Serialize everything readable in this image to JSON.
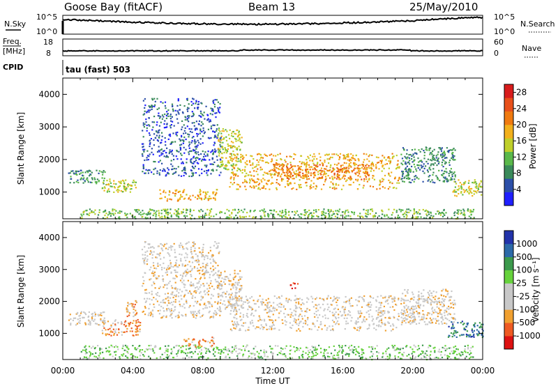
{
  "header": {
    "station": "Goose Bay (fitACF)",
    "beam": "Beam 13",
    "date": "25/May/2010"
  },
  "strip": {
    "nsky_label": "N.Sky",
    "nsearch_label": "N.Search",
    "freq_label_1": "Freq.",
    "freq_label_2": "[MHz]",
    "nave_label": "Nave",
    "cpid_label": "CPID",
    "cpid_value": "tau (fast) 503",
    "noise_ticks_left": [
      "10^5",
      "10^0"
    ],
    "noise_ticks_right": [
      "10^5",
      "10^0"
    ],
    "freq_ticks_left": [
      "18",
      "8"
    ],
    "nave_ticks_right": [
      "60",
      "0"
    ]
  },
  "colors": {
    "power": [
      "#1f1fff",
      "#2c4fa8",
      "#3a8a5a",
      "#5ab84a",
      "#bfcf2a",
      "#f2b01c",
      "#f07a10",
      "#e8501a",
      "#d81c1c"
    ],
    "velocity": [
      "#dd1111",
      "#ee5a22",
      "#f0a030",
      "#c8c8c8",
      "#c8c8c8",
      "#66d23c",
      "#3c9a4c",
      "#2c6aa8",
      "#2233aa"
    ]
  },
  "chart_data": [
    {
      "type": "heatmap",
      "name": "power",
      "xlabel": "",
      "ylabel": "Slant Range [km]",
      "x_range": [
        "00:00",
        "24:00"
      ],
      "xlim_hours": [
        0,
        24
      ],
      "ylim": [
        180,
        4500
      ],
      "yticks": [
        1000,
        2000,
        3000,
        4000
      ],
      "xticks": [
        "00:00",
        "04:00",
        "08:00",
        "12:00",
        "16:00",
        "20:00",
        "00:00"
      ],
      "colorbar": {
        "label": "Power [dB]",
        "ticks": [
          "4",
          "8",
          "12",
          "16",
          "20",
          "24",
          "28"
        ],
        "range": [
          0,
          30
        ]
      },
      "regions": [
        {
          "t0": 0.3,
          "t1": 2.4,
          "r0": 1280,
          "r1": 1700,
          "level": 2
        },
        {
          "t0": 2.2,
          "t1": 4.2,
          "r0": 1000,
          "r1": 1450,
          "level": 4
        },
        {
          "t0": 4.5,
          "t1": 9.0,
          "r0": 1500,
          "r1": 3900,
          "level": 1
        },
        {
          "t0": 5.5,
          "t1": 8.8,
          "r0": 750,
          "r1": 1100,
          "level": 5
        },
        {
          "t0": 8.8,
          "t1": 10.2,
          "r0": 1700,
          "r1": 3000,
          "level": 4
        },
        {
          "t0": 9.5,
          "t1": 19.2,
          "r0": 1100,
          "r1": 2200,
          "level": 5
        },
        {
          "t0": 12.0,
          "t1": 17.5,
          "r0": 1400,
          "r1": 1900,
          "level": 6
        },
        {
          "t0": 19.3,
          "t1": 22.4,
          "r0": 1300,
          "r1": 2400,
          "level": 2
        },
        {
          "t0": 22.2,
          "t1": 24.0,
          "r0": 900,
          "r1": 1400,
          "level": 4
        },
        {
          "t0": 1.0,
          "t1": 23.5,
          "r0": 200,
          "r1": 500,
          "level": 3
        }
      ]
    },
    {
      "type": "heatmap",
      "name": "velocity",
      "xlabel": "Time UT",
      "ylabel": "Slant Range [km]",
      "x_range": [
        "00:00",
        "24:00"
      ],
      "xlim_hours": [
        0,
        24
      ],
      "ylim": [
        180,
        4500
      ],
      "yticks": [
        1000,
        2000,
        3000,
        4000
      ],
      "xticks": [
        "00:00",
        "04:00",
        "08:00",
        "12:00",
        "16:00",
        "20:00",
        "00:00"
      ],
      "colorbar": {
        "label": "Velocity [m s⁻¹]",
        "ticks": [
          "-1000",
          "-500",
          "-100",
          "-25",
          "25",
          "100",
          "500",
          "1000"
        ],
        "range": [
          -1250,
          1250
        ]
      },
      "regions": [
        {
          "t0": 0.3,
          "t1": 2.4,
          "r0": 1280,
          "r1": 1700,
          "level": 3
        },
        {
          "t0": 2.2,
          "t1": 4.4,
          "r0": 950,
          "r1": 1450,
          "level": 2
        },
        {
          "t0": 3.6,
          "t1": 4.2,
          "r0": 1500,
          "r1": 2100,
          "level": 2
        },
        {
          "t0": 4.5,
          "t1": 9.0,
          "r0": 1500,
          "r1": 3900,
          "level": 3
        },
        {
          "t0": 6.8,
          "t1": 8.6,
          "r0": 600,
          "r1": 900,
          "level": 2
        },
        {
          "t0": 8.8,
          "t1": 10.2,
          "r0": 1700,
          "r1": 3000,
          "level": 3
        },
        {
          "t0": 9.5,
          "t1": 19.2,
          "r0": 1100,
          "r1": 2200,
          "level": 3
        },
        {
          "t0": 19.3,
          "t1": 22.4,
          "r0": 1300,
          "r1": 2400,
          "level": 3
        },
        {
          "t0": 22.0,
          "t1": 24.0,
          "r0": 900,
          "r1": 1400,
          "level": 7
        },
        {
          "t0": 1.0,
          "t1": 23.5,
          "r0": 200,
          "r1": 650,
          "level": 5
        },
        {
          "t0": 12.8,
          "t1": 13.4,
          "r0": 2400,
          "r1": 2600,
          "level": 0
        }
      ]
    }
  ]
}
